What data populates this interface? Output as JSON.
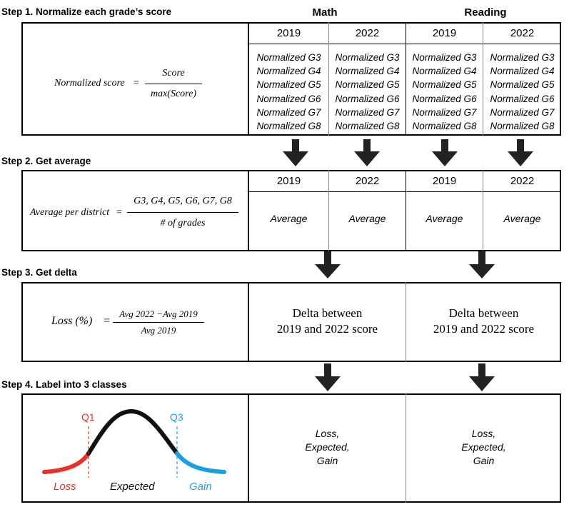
{
  "steps": {
    "step1": "Step 1. Normalize each grade’s score",
    "step2": "Step 2. Get average",
    "step3": "Step 3. Get delta",
    "step4": "Step 4. Label into 3 classes"
  },
  "subjects": {
    "math": "Math",
    "reading": "Reading"
  },
  "years": {
    "y2019": "2019",
    "y2022": "2022"
  },
  "step1": {
    "formula_lhs": "Normalized score",
    "equals": "=",
    "numerator": "Score",
    "denominator": "max(Score)",
    "items": [
      "Normalized G3",
      "Normalized G4",
      "Normalized G5",
      "Normalized G6",
      "Normalized G7",
      "Normalized G8"
    ]
  },
  "step2": {
    "formula_lhs": "Average per district",
    "equals": "=",
    "numerator": "G3, G4, G5, G6, G7, G8",
    "denominator": "# of grades",
    "cell": "Average"
  },
  "step3": {
    "formula_lhs": "Loss (%)",
    "equals": "=",
    "numerator": "Avg 2022 −Avg 2019",
    "denominator": "Avg 2019",
    "delta_line1": "Delta between",
    "delta_line2": "2019 and 2022 score"
  },
  "step4": {
    "q1": "Q1",
    "q3": "Q3",
    "loss": "Loss",
    "expected": "Expected",
    "gain": "Gain",
    "cell_line1": "Loss,",
    "cell_line2": "Expected,",
    "cell_line3": "Gain"
  },
  "colors": {
    "loss": "#e8312a",
    "gain": "#1a9fe0",
    "curve": "#111111",
    "arrow": "#222222"
  }
}
